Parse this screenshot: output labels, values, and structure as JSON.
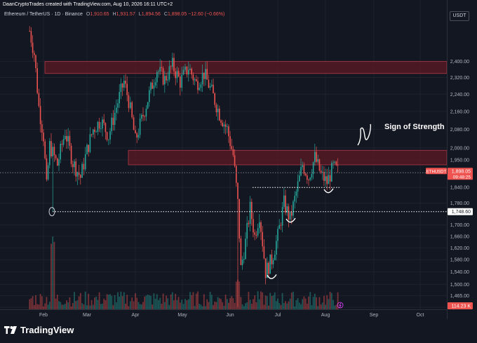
{
  "header": {
    "attribution": "DaanCryptoTrades created with TradingView.com, Aug 10, 2026 16:11 UTC+2",
    "symbol_title": "Ethereum / TetherUS · 1D · Binance",
    "ohlc": {
      "open_label": "O",
      "open": "1,910.65",
      "high_label": "H",
      "high": "1,931.57",
      "low_label": "L",
      "low": "1,894.56",
      "close_label": "C",
      "close": "1,898.05",
      "change": "−12.60 (−0.66%)"
    },
    "currency": "USDT"
  },
  "footer": {
    "brand": "TradingView"
  },
  "colors": {
    "background": "#131722",
    "up": "#26a69a",
    "down": "#ef5350",
    "zone_fill": "#5c1a24",
    "zone_border": "#b03a48",
    "label_bg": "#ef5350",
    "grid": "#1e222d"
  },
  "chart_data": {
    "type": "candlestick",
    "symbol": "ETHUSDT",
    "timeframe": "1D",
    "x_ticks": [
      "Feb",
      "Mar",
      "Apr",
      "May",
      "Jun",
      "Jul",
      "Aug",
      "Sep",
      "Oct"
    ],
    "y_ticks": [
      "2,400.00",
      "2,320.00",
      "2,240.00",
      "2,160.00",
      "2,080.00",
      "2,000.00",
      "1,950.00",
      "1,840.00",
      "1,780.00",
      "1,700.00",
      "1,660.00",
      "1,620.00",
      "1,580.00",
      "1,540.00",
      "1,500.00",
      "1,465.00",
      "1,429.00"
    ],
    "y_scale": "log",
    "ylim": [
      1400,
      2600
    ],
    "price_labels": [
      {
        "text": "ETHUSDT",
        "value": "1,898.05",
        "countdown": "09:48:25",
        "color": "#ef5350"
      },
      {
        "text": "",
        "value": "1,748.60",
        "color": "#ffffff"
      },
      {
        "text": "",
        "value": "114.23 K",
        "color": "#ef5350",
        "kind": "volume"
      }
    ],
    "zones": [
      {
        "name": "resistance",
        "from": 2340,
        "to": 2400
      },
      {
        "name": "resistance",
        "from": 1930,
        "to": 1990
      }
    ],
    "levels": [
      {
        "value": 1748.6,
        "style": "dotted",
        "color": "#ffffff"
      },
      {
        "value": 1840,
        "style": "dotted",
        "color": "#ffffff",
        "start": "Jun"
      },
      {
        "value": 1898.05,
        "style": "dotted",
        "color": "#787b86"
      }
    ],
    "annotations": [
      {
        "text": "Sign of Strength",
        "date": "Aug"
      }
    ],
    "close_path": [
      {
        "date": "Jan 23",
        "close": 2560
      },
      {
        "date": "Jan 26",
        "close": 2440
      },
      {
        "date": "Jan 29",
        "close": 2180
      },
      {
        "date": "Feb 01",
        "close": 2050
      },
      {
        "date": "Feb 03",
        "close": 1840
      },
      {
        "date": "Feb 05",
        "close": 2010
      },
      {
        "date": "Feb 10",
        "close": 1930
      },
      {
        "date": "Feb 15",
        "close": 2070
      },
      {
        "date": "Feb 20",
        "close": 1940
      },
      {
        "date": "Feb 25",
        "close": 1880
      },
      {
        "date": "Mar 01",
        "close": 1990
      },
      {
        "date": "Mar 05",
        "close": 2080
      },
      {
        "date": "Mar 10",
        "close": 2120
      },
      {
        "date": "Mar 15",
        "close": 2050
      },
      {
        "date": "Mar 20",
        "close": 2180
      },
      {
        "date": "Mar 25",
        "close": 2300
      },
      {
        "date": "Mar 28",
        "close": 2210
      },
      {
        "date": "Apr 01",
        "close": 2030
      },
      {
        "date": "Apr 05",
        "close": 2120
      },
      {
        "date": "Apr 10",
        "close": 2240
      },
      {
        "date": "Apr 15",
        "close": 2360
      },
      {
        "date": "Apr 20",
        "close": 2310
      },
      {
        "date": "Apr 25",
        "close": 2380
      },
      {
        "date": "Apr 30",
        "close": 2300
      },
      {
        "date": "May 05",
        "close": 2370
      },
      {
        "date": "May 10",
        "close": 2290
      },
      {
        "date": "May 15",
        "close": 2340
      },
      {
        "date": "May 20",
        "close": 2250
      },
      {
        "date": "May 25",
        "close": 2150
      },
      {
        "date": "May 30",
        "close": 2080
      },
      {
        "date": "Jun 03",
        "close": 1970
      },
      {
        "date": "Jun 06",
        "close": 1780
      },
      {
        "date": "Jun 08",
        "close": 1550
      },
      {
        "date": "Jun 11",
        "close": 1640
      },
      {
        "date": "Jun 14",
        "close": 1760
      },
      {
        "date": "Jun 17",
        "close": 1660
      },
      {
        "date": "Jun 20",
        "close": 1740
      },
      {
        "date": "Jun 24",
        "close": 1540
      },
      {
        "date": "Jun 28",
        "close": 1580
      },
      {
        "date": "Jul 01",
        "close": 1660
      },
      {
        "date": "Jul 05",
        "close": 1780
      },
      {
        "date": "Jul 09",
        "close": 1720
      },
      {
        "date": "Jul 13",
        "close": 1820
      },
      {
        "date": "Jul 17",
        "close": 1930
      },
      {
        "date": "Jul 21",
        "close": 1880
      },
      {
        "date": "Jul 25",
        "close": 1960
      },
      {
        "date": "Jul 29",
        "close": 1890
      },
      {
        "date": "Aug 02",
        "close": 1860
      },
      {
        "date": "Aug 06",
        "close": 1920
      },
      {
        "date": "Aug 10",
        "close": 1898.05
      }
    ]
  }
}
